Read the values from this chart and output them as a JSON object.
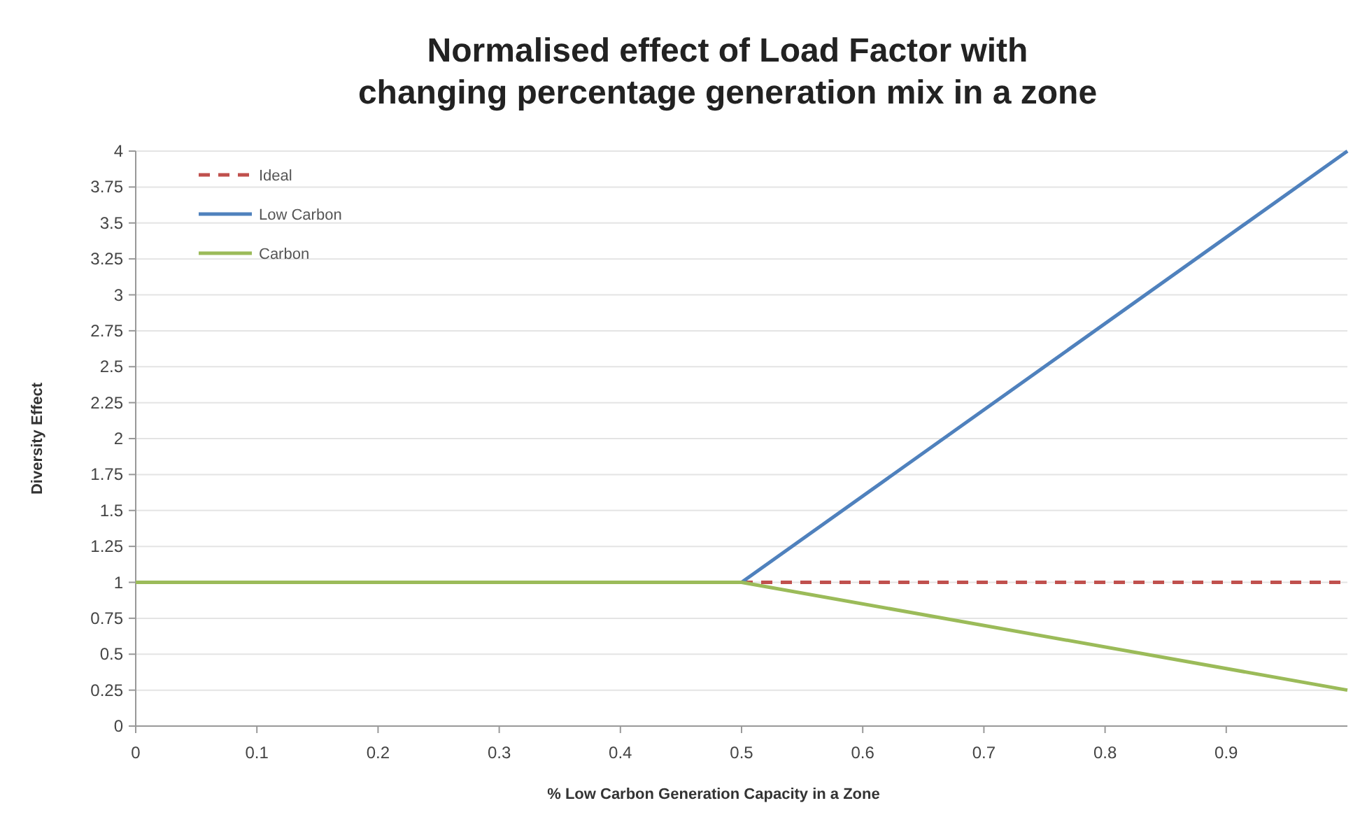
{
  "chart_data": {
    "type": "line",
    "title": "Normalised effect of Load Factor with changing percentage generation mix in a zone",
    "xlabel": "% Low Carbon Generation Capacity in a Zone",
    "ylabel": "Diversity Effect",
    "xlim": [
      0,
      1
    ],
    "xticks": [
      0,
      0.1,
      0.2,
      0.3,
      0.4,
      0.5,
      0.6,
      0.7,
      0.8,
      0.9
    ],
    "ylim": [
      0,
      4
    ],
    "yticks": [
      0,
      0.25,
      0.5,
      0.75,
      1,
      1.25,
      1.5,
      1.75,
      2,
      2.25,
      2.5,
      2.75,
      3,
      3.25,
      3.5,
      3.75,
      4
    ],
    "grid": "y",
    "legend": "top left",
    "marker": "none",
    "series": [
      {
        "name": "Ideal",
        "color": "#c0504d",
        "line_style": "dashed",
        "x": [
          0.5,
          1
        ],
        "values": [
          1,
          1
        ]
      },
      {
        "name": "Low Carbon",
        "color": "#4f81bd",
        "line_style": "solid",
        "x": [
          0.5,
          1
        ],
        "values": [
          1,
          4
        ]
      },
      {
        "name": "Carbon",
        "color": "#9bbb59",
        "line_style": "solid",
        "x": [
          0,
          0.5,
          1
        ],
        "values": [
          1,
          1,
          0.25
        ]
      }
    ]
  }
}
